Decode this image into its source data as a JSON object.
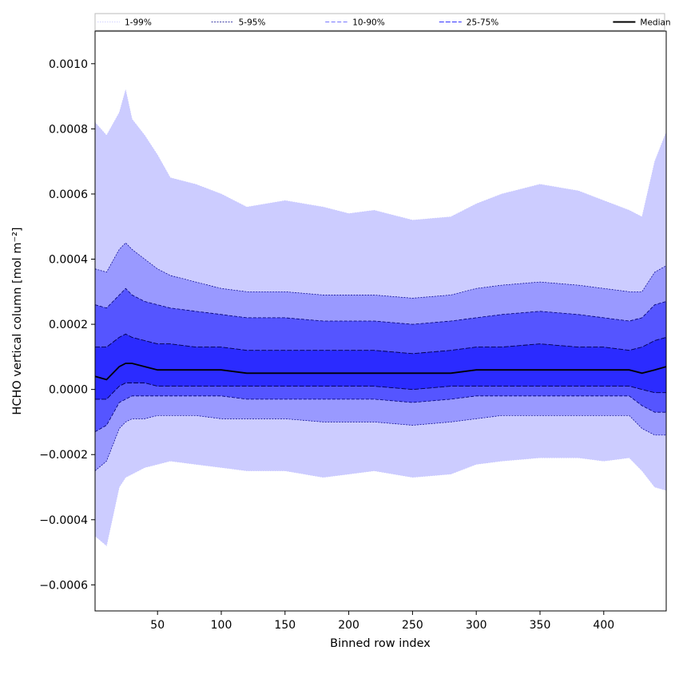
{
  "chart_data": {
    "type": "area",
    "xlabel": "Binned row index",
    "ylabel": "HCHO vertical column [mol m⁻²]",
    "xlim": [
      1,
      449
    ],
    "ylim": [
      -0.00068,
      0.0011
    ],
    "x_ticks": [
      50,
      100,
      150,
      200,
      250,
      300,
      350,
      400
    ],
    "x_tick_labels": [
      "50",
      "100",
      "150",
      "200",
      "250",
      "300",
      "350",
      "400"
    ],
    "y_ticks": [
      -0.0006,
      -0.0004,
      -0.0002,
      0.0,
      0.0002,
      0.0004,
      0.0006,
      0.0008,
      0.001
    ],
    "y_tick_labels": [
      "−0.0006",
      "−0.0004",
      "−0.0002",
      "0.0000",
      "0.0002",
      "0.0004",
      "0.0006",
      "0.0008",
      "0.0010"
    ],
    "grid": false,
    "legend_position": "top",
    "x": [
      1,
      10,
      20,
      25,
      30,
      40,
      50,
      60,
      80,
      100,
      120,
      150,
      180,
      200,
      220,
      250,
      280,
      300,
      320,
      350,
      380,
      400,
      420,
      430,
      440,
      449
    ],
    "bands": [
      {
        "name": "1-99%",
        "color": "#ccccff",
        "line_color": "#c4c4ff",
        "dash": "1.5,1.5",
        "line_width": 0.6,
        "upper": [
          0.00082,
          0.00078,
          0.00085,
          0.00092,
          0.00083,
          0.00078,
          0.00072,
          0.00065,
          0.00063,
          0.0006,
          0.00056,
          0.00058,
          0.00056,
          0.00054,
          0.00055,
          0.00052,
          0.00053,
          0.00057,
          0.0006,
          0.00063,
          0.00061,
          0.00058,
          0.00055,
          0.00053,
          0.0007,
          0.00079
        ],
        "lower": [
          -0.00045,
          -0.00048,
          -0.0003,
          -0.00027,
          -0.00026,
          -0.00024,
          -0.00023,
          -0.00022,
          -0.00023,
          -0.00024,
          -0.00025,
          -0.00025,
          -0.00027,
          -0.00026,
          -0.00025,
          -0.00027,
          -0.00026,
          -0.00023,
          -0.00022,
          -0.00021,
          -0.00021,
          -0.00022,
          -0.00021,
          -0.00025,
          -0.0003,
          -0.00031
        ]
      },
      {
        "name": "5-95%",
        "color": "#9999ff",
        "line_color": "#00008b",
        "dash": "2,1.5",
        "line_width": 0.7,
        "upper": [
          0.00037,
          0.00036,
          0.00043,
          0.00045,
          0.00043,
          0.0004,
          0.00037,
          0.00035,
          0.00033,
          0.00031,
          0.0003,
          0.0003,
          0.00029,
          0.00029,
          0.00029,
          0.00028,
          0.00029,
          0.00031,
          0.00032,
          0.00033,
          0.00032,
          0.00031,
          0.0003,
          0.0003,
          0.00036,
          0.00038
        ],
        "lower": [
          -0.00025,
          -0.00022,
          -0.00012,
          -0.0001,
          -9e-05,
          -9e-05,
          -8e-05,
          -8e-05,
          -8e-05,
          -9e-05,
          -9e-05,
          -9e-05,
          -0.0001,
          -0.0001,
          -0.0001,
          -0.00011,
          -0.0001,
          -9e-05,
          -8e-05,
          -8e-05,
          -8e-05,
          -8e-05,
          -8e-05,
          -0.00012,
          -0.00014,
          -0.00014
        ]
      },
      {
        "name": "10-90%",
        "color": "#5555ff",
        "line_color": "#000070",
        "dash": "4,2",
        "line_width": 0.8,
        "upper": [
          0.00026,
          0.00025,
          0.00029,
          0.00031,
          0.00029,
          0.00027,
          0.00026,
          0.00025,
          0.00024,
          0.00023,
          0.00022,
          0.00022,
          0.00021,
          0.00021,
          0.00021,
          0.0002,
          0.00021,
          0.00022,
          0.00023,
          0.00024,
          0.00023,
          0.00022,
          0.00021,
          0.00022,
          0.00026,
          0.00027
        ],
        "lower": [
          -0.00013,
          -0.00011,
          -4e-05,
          -3e-05,
          -2e-05,
          -2e-05,
          -2e-05,
          -2e-05,
          -2e-05,
          -2e-05,
          -3e-05,
          -3e-05,
          -3e-05,
          -3e-05,
          -3e-05,
          -4e-05,
          -3e-05,
          -2e-05,
          -2e-05,
          -2e-05,
          -2e-05,
          -2e-05,
          -2e-05,
          -5e-05,
          -7e-05,
          -7e-05
        ]
      },
      {
        "name": "25-75%",
        "color": "#2b2bff",
        "line_color": "#00004a",
        "dash": "6,2",
        "line_width": 0.9,
        "upper": [
          0.00013,
          0.00013,
          0.00016,
          0.00017,
          0.00016,
          0.00015,
          0.00014,
          0.00014,
          0.00013,
          0.00013,
          0.00012,
          0.00012,
          0.00012,
          0.00012,
          0.00012,
          0.00011,
          0.00012,
          0.00013,
          0.00013,
          0.00014,
          0.00013,
          0.00013,
          0.00012,
          0.00013,
          0.00015,
          0.00016
        ],
        "lower": [
          -3e-05,
          -3e-05,
          1e-05,
          2e-05,
          2e-05,
          2e-05,
          1e-05,
          1e-05,
          1e-05,
          1e-05,
          1e-05,
          1e-05,
          1e-05,
          1e-05,
          1e-05,
          0.0,
          1e-05,
          1e-05,
          1e-05,
          1e-05,
          1e-05,
          1e-05,
          1e-05,
          0.0,
          -1e-05,
          -1e-05
        ]
      }
    ],
    "median": {
      "name": "Median",
      "color": "#000000",
      "line_width": 1.8,
      "values": [
        4e-05,
        3e-05,
        7e-05,
        8e-05,
        8e-05,
        7e-05,
        6e-05,
        6e-05,
        6e-05,
        6e-05,
        5e-05,
        5e-05,
        5e-05,
        5e-05,
        5e-05,
        5e-05,
        5e-05,
        6e-05,
        6e-05,
        6e-05,
        6e-05,
        6e-05,
        6e-05,
        5e-05,
        6e-05,
        7e-05
      ]
    },
    "legend": [
      {
        "label": "1-99%",
        "color": "#c4c4ff",
        "dash": "1.5,1.5",
        "width": 0.8
      },
      {
        "label": "5-95%",
        "color": "#00008b",
        "dash": "2,1.5",
        "width": 0.7
      },
      {
        "label": "10-90%",
        "color": "#7777ff",
        "dash": "5,2.5",
        "width": 1.0
      },
      {
        "label": "25-75%",
        "color": "#3333ff",
        "dash": "6,2",
        "width": 1.0
      },
      {
        "label": "Median",
        "color": "#000000",
        "dash": "",
        "width": 2.0
      }
    ]
  }
}
